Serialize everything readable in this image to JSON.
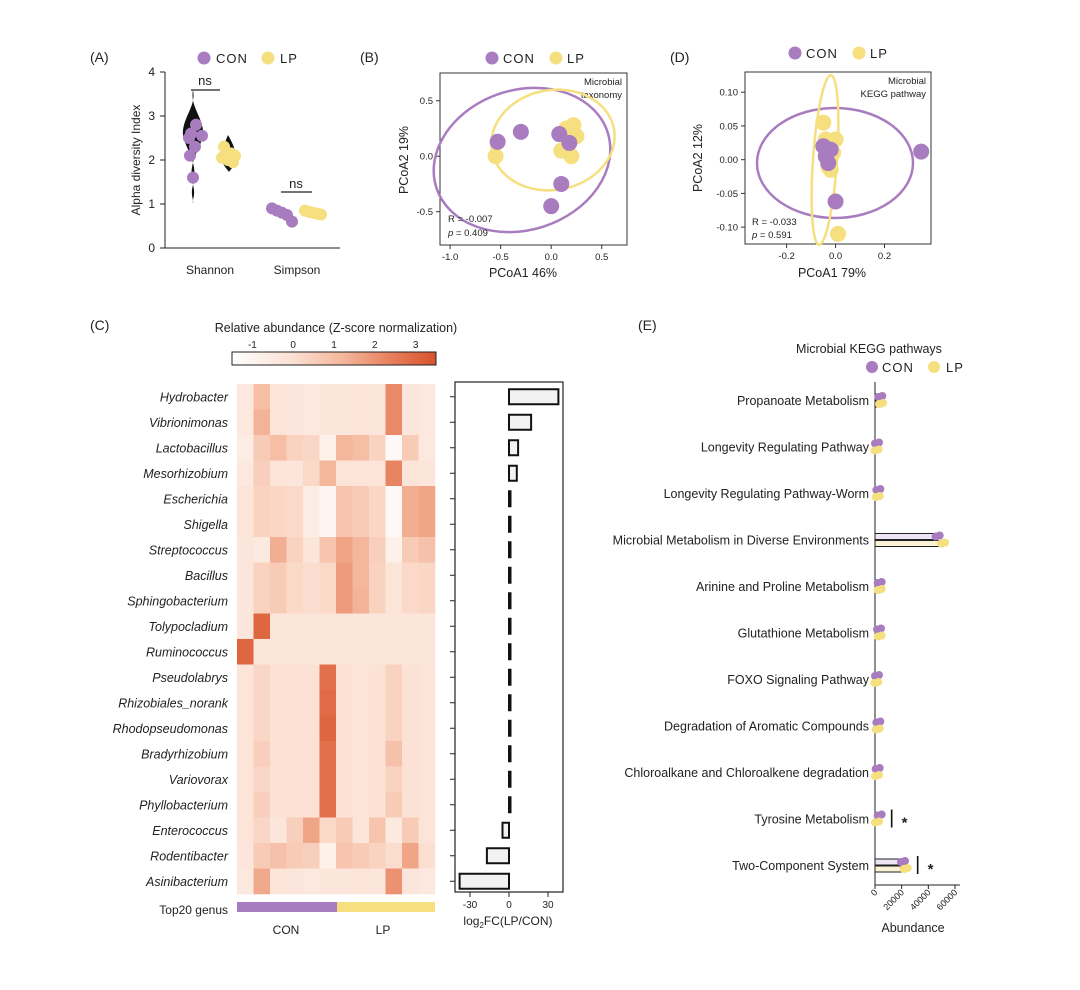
{
  "colors": {
    "con": "#a97cc0",
    "lp": "#f6df7e",
    "heat_low": "#ffffff",
    "heat_high": "#d6532d"
  },
  "chart_data": [
    {
      "id": "A",
      "type": "violin",
      "panel_label": "(A)",
      "legend": [
        "CON",
        "LP"
      ],
      "ylabel": "Alpha diversity Index",
      "categories": [
        "Shannon",
        "Simpson"
      ],
      "ylim": [
        0,
        4
      ],
      "yticks": [
        "0",
        "1",
        "2",
        "3",
        "4"
      ],
      "significance": [
        "ns",
        "ns"
      ],
      "series": [
        {
          "name": "CON",
          "points": [
            [
              2.8,
              2.6,
              2.55,
              2.5,
              2.3,
              2.1,
              1.6
            ],
            [
              0.9,
              0.85,
              0.8,
              0.75,
              0.6
            ]
          ]
        },
        {
          "name": "LP",
          "points": [
            [
              2.3,
              2.15,
              2.1,
              2.05,
              2.0,
              1.95
            ],
            [
              0.85,
              0.82,
              0.8,
              0.78,
              0.76
            ]
          ]
        }
      ]
    },
    {
      "id": "B",
      "type": "scatter",
      "panel_label": "(B)",
      "legend": [
        "CON",
        "LP"
      ],
      "annotation": [
        "Microbial",
        "taxonomy"
      ],
      "stat_r": "R = -0.007",
      "stat_p_label": "p",
      "stat_p_value": " = 0.409",
      "xlabel": "PCoA1 46%",
      "ylabel": "PCoA2 19%",
      "xlim": [
        -1.1,
        0.75
      ],
      "ylim": [
        -0.8,
        0.75
      ],
      "xticks": [
        "-1.0",
        "-0.5",
        "0.0",
        "0.5"
      ],
      "yticks": [
        "-0.5",
        "0.0",
        "0.5"
      ],
      "series": [
        {
          "name": "CON",
          "x": [
            -0.53,
            -0.3,
            0.08,
            0.18,
            0.1,
            0.0
          ],
          "y": [
            0.13,
            0.22,
            0.2,
            0.12,
            -0.25,
            -0.45
          ]
        },
        {
          "name": "LP",
          "x": [
            -0.55,
            0.15,
            0.22,
            0.25,
            0.1,
            0.2
          ],
          "y": [
            0.0,
            0.25,
            0.28,
            0.18,
            0.05,
            0.0
          ]
        }
      ]
    },
    {
      "id": "D",
      "type": "scatter",
      "panel_label": "(D)",
      "legend": [
        "CON",
        "LP"
      ],
      "annotation": [
        "Microbial",
        "KEGG pathway"
      ],
      "stat_r": "R = -0.033",
      "stat_p_label": "p",
      "stat_p_value": " = 0.591",
      "xlabel": "PCoA1 79%",
      "ylabel": "PCoA2 12%",
      "xlim": [
        -0.37,
        0.39
      ],
      "ylim": [
        -0.125,
        0.13
      ],
      "xticks": [
        "-0.2",
        "0.0",
        "0.2"
      ],
      "yticks": [
        "0.10",
        "0.05",
        "0.00",
        "-0.05",
        "-0.10"
      ],
      "series": [
        {
          "name": "CON",
          "x": [
            -0.05,
            -0.04,
            -0.03,
            -0.02,
            0.0,
            0.35
          ],
          "y": [
            0.02,
            0.005,
            -0.005,
            0.015,
            -0.062,
            0.012
          ]
        },
        {
          "name": "LP",
          "x": [
            -0.05,
            -0.04,
            -0.03,
            -0.02,
            -0.01,
            0.0,
            0.01
          ],
          "y": [
            0.055,
            0.03,
            -0.01,
            -0.015,
            0.01,
            0.03,
            -0.11
          ]
        }
      ]
    },
    {
      "id": "C",
      "type": "heatmap",
      "panel_label": "(C)",
      "colorbar_title": "Relative abundance (Z-score normalization)",
      "colorbar_range": [
        -1.5,
        3.5
      ],
      "colorbar_ticks": [
        "-1",
        "0",
        "1",
        "2",
        "3"
      ],
      "rows": [
        "Hydrobacter",
        "Vibrionimonas",
        "Lactobacillus",
        "Mesorhizobium",
        "Escherichia",
        "Shigella",
        "Streptococcus",
        "Bacillus",
        "Sphingobacterium",
        "Tolypocladium",
        "Ruminococcus",
        "Pseudolabrys",
        "Rhizobiales_norank",
        "Rhodopseudomonas",
        "Bradyrhizobium",
        "Variovorax",
        "Phyllobacterium",
        "Enterococcus",
        "Rodentibacter",
        "Asinibacterium"
      ],
      "groups": [
        {
          "name": "CON",
          "columns": 6
        },
        {
          "name": "LP",
          "columns": 6
        }
      ],
      "group_caption": "Top20 genus",
      "values": [
        [
          -0.4,
          1.0,
          -0.2,
          -0.3,
          -0.4,
          -0.3,
          -0.3,
          -0.2,
          -0.3,
          2.2,
          -0.3,
          -0.4
        ],
        [
          -0.4,
          1.3,
          -0.2,
          -0.3,
          -0.4,
          -0.3,
          -0.3,
          -0.2,
          -0.3,
          2.2,
          -0.3,
          -0.4
        ],
        [
          -0.6,
          0.6,
          1.0,
          0.4,
          0.3,
          -0.8,
          1.2,
          1.0,
          0.4,
          -1.2,
          0.6,
          -0.4
        ],
        [
          -0.4,
          0.5,
          -0.2,
          -0.3,
          0.2,
          1.2,
          -0.2,
          -0.2,
          -0.2,
          2.3,
          -0.2,
          -0.3
        ],
        [
          -0.2,
          0.4,
          0.3,
          0.2,
          -0.6,
          -1.0,
          0.8,
          0.6,
          0.3,
          -1.2,
          1.4,
          1.6
        ],
        [
          -0.2,
          0.4,
          0.3,
          0.2,
          -0.6,
          -1.0,
          0.8,
          0.6,
          0.3,
          -1.2,
          1.4,
          1.6
        ],
        [
          -0.3,
          -0.5,
          1.4,
          0.4,
          -0.3,
          0.8,
          1.6,
          1.2,
          0.5,
          -0.8,
          0.6,
          0.9
        ],
        [
          -0.3,
          0.4,
          0.6,
          0.2,
          0.1,
          0.2,
          1.8,
          1.2,
          0.4,
          -0.2,
          0.2,
          0.3
        ],
        [
          -0.3,
          0.4,
          0.6,
          0.2,
          0.1,
          0.2,
          1.8,
          1.3,
          0.4,
          -0.2,
          0.2,
          0.3
        ],
        [
          -0.3,
          3.0,
          -0.3,
          -0.3,
          -0.3,
          -0.3,
          -0.3,
          -0.3,
          -0.3,
          -0.3,
          -0.3,
          -0.3
        ],
        [
          3.0,
          -0.3,
          -0.3,
          -0.3,
          -0.3,
          -0.3,
          -0.3,
          -0.3,
          -0.3,
          -0.3,
          -0.3,
          -0.3
        ],
        [
          -0.2,
          0.3,
          -0.1,
          -0.1,
          -0.1,
          2.8,
          -0.1,
          -0.2,
          -0.1,
          0.4,
          -0.1,
          -0.2
        ],
        [
          -0.2,
          0.3,
          -0.1,
          -0.1,
          -0.1,
          2.9,
          -0.1,
          -0.2,
          -0.1,
          0.4,
          -0.1,
          -0.2
        ],
        [
          -0.2,
          0.3,
          -0.1,
          -0.1,
          -0.1,
          3.0,
          -0.1,
          -0.2,
          -0.1,
          0.4,
          -0.1,
          -0.2
        ],
        [
          -0.2,
          0.5,
          -0.1,
          -0.1,
          -0.1,
          2.8,
          -0.1,
          -0.2,
          -0.1,
          0.9,
          -0.1,
          -0.2
        ],
        [
          -0.2,
          0.3,
          -0.1,
          -0.1,
          -0.1,
          2.8,
          -0.1,
          -0.2,
          -0.1,
          0.4,
          -0.1,
          -0.2
        ],
        [
          -0.2,
          0.5,
          -0.1,
          -0.1,
          -0.1,
          2.8,
          -0.1,
          -0.2,
          -0.1,
          0.6,
          -0.1,
          -0.2
        ],
        [
          -0.2,
          0.3,
          -0.3,
          0.5,
          1.6,
          0.2,
          0.6,
          -0.3,
          0.8,
          -0.5,
          0.6,
          -0.2
        ],
        [
          -0.3,
          0.6,
          0.9,
          0.6,
          0.5,
          -0.8,
          0.8,
          0.6,
          0.4,
          0.1,
          1.6,
          0.0
        ],
        [
          -0.4,
          1.5,
          -0.2,
          -0.3,
          -0.4,
          -0.3,
          -0.3,
          -0.2,
          -0.3,
          2.0,
          -0.3,
          -0.4
        ]
      ]
    },
    {
      "id": "C-bar",
      "type": "bar",
      "orientation": "horizontal",
      "xlabel_prefix": "log",
      "xlabel_sub": "2",
      "xlabel_suffix": "FC(LP/CON)",
      "xticks": [
        "-30",
        "0",
        "30"
      ],
      "xlim": [
        -40,
        40
      ],
      "categories_ref": "heatmap rows",
      "values": [
        38,
        17,
        7,
        6,
        0.8,
        0.8,
        0.8,
        0.8,
        0.8,
        0.8,
        0.8,
        0.8,
        0.8,
        0.8,
        0.8,
        0.8,
        0.8,
        -5,
        -17,
        -38
      ]
    },
    {
      "id": "E",
      "type": "bar",
      "orientation": "horizontal",
      "panel_label": "(E)",
      "title": "Microbial KEGG pathways",
      "legend": [
        "CON",
        "LP"
      ],
      "xlabel": "Abundance",
      "xlim": [
        0,
        60000
      ],
      "xticks": [
        "0",
        "20000",
        "40000",
        "60000"
      ],
      "categories": [
        "Propanoate Metabolism",
        "Longevity Regulating Pathway",
        "Longevity Regulating Pathway-Worm",
        "Microbial Metabolism in Diverse Environments",
        "Arinine and Proline Metabolism",
        "Glutathione Metabolism",
        "FOXO Signaling Pathway",
        "Degradation of Aromatic Compounds",
        "Chloroalkane and Chloroalkene degradation",
        "Tyrosine Metabolism",
        "Two-Component System"
      ],
      "series": [
        {
          "name": "CON",
          "values": [
            4000,
            1500,
            2500,
            47000,
            3500,
            3000,
            1500,
            2500,
            2000,
            3500,
            21000
          ]
        },
        {
          "name": "LP",
          "values": [
            4500,
            1200,
            2000,
            51000,
            3500,
            3500,
            1000,
            2000,
            1500,
            1500,
            23000
          ]
        }
      ],
      "significance": [
        {
          "category": "Tyrosine Metabolism",
          "label": "*"
        },
        {
          "category": "Two-Component System",
          "label": "*"
        }
      ]
    }
  ]
}
